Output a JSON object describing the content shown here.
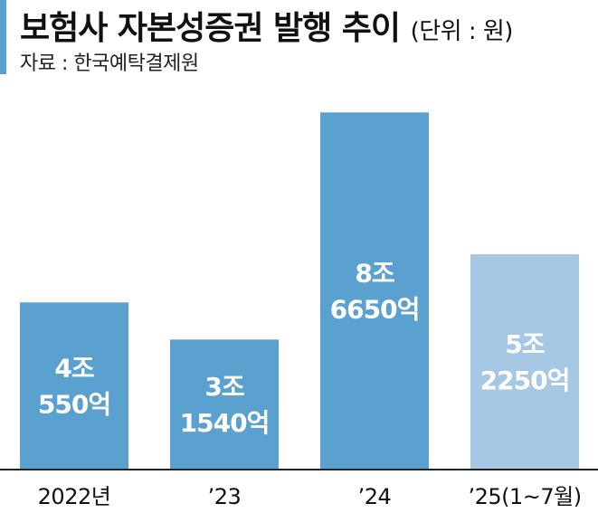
{
  "header": {
    "title": "보험사 자본성증권 발행 추이",
    "unit": "(단위 : 원)",
    "source": "자료 : 한국예탁결제원"
  },
  "colors": {
    "accent": "#5aa1cf",
    "bar": "#5aa1cf",
    "bar_highlight": "#a6c8e4",
    "baseline": "#222222"
  },
  "chart_data": {
    "type": "bar",
    "title": "보험사 자본성증권 발행 추이",
    "categories": [
      "2022년",
      "’23",
      "’24",
      "’25(1~7월)"
    ],
    "values": [
      40550,
      31540,
      86650,
      52250
    ],
    "value_labels": [
      [
        "4조",
        "550억"
      ],
      [
        "3조",
        "1540억"
      ],
      [
        "8조",
        "6650억"
      ],
      [
        "5조",
        "2250억"
      ]
    ],
    "unit": "억원",
    "ylim": [
      0,
      90000
    ],
    "grid": false,
    "legend": "none"
  }
}
